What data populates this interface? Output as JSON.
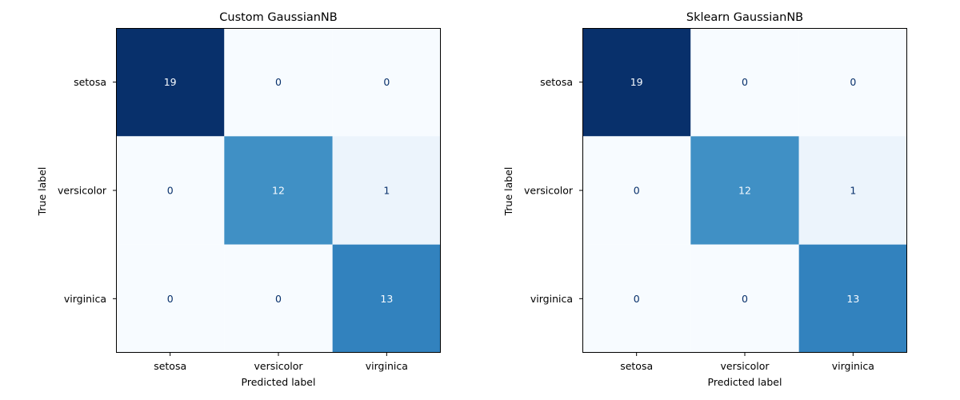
{
  "chart_data": [
    {
      "type": "heatmap",
      "title": "Custom GaussianNB",
      "xlabel": "Predicted label",
      "ylabel": "True label",
      "x_categories": [
        "setosa",
        "versicolor",
        "virginica"
      ],
      "y_categories": [
        "setosa",
        "versicolor",
        "virginica"
      ],
      "values": [
        [
          19,
          0,
          0
        ],
        [
          0,
          12,
          1
        ],
        [
          0,
          0,
          13
        ]
      ],
      "colormap": "Blues",
      "vmin": 0,
      "vmax": 19,
      "colorbar": false
    },
    {
      "type": "heatmap",
      "title": "Sklearn GaussianNB",
      "xlabel": "Predicted label",
      "ylabel": "True label",
      "x_categories": [
        "setosa",
        "versicolor",
        "virginica"
      ],
      "y_categories": [
        "setosa",
        "versicolor",
        "virginica"
      ],
      "values": [
        [
          19,
          0,
          0
        ],
        [
          0,
          12,
          1
        ],
        [
          0,
          0,
          13
        ]
      ],
      "colormap": "Blues",
      "vmin": 0,
      "vmax": 19,
      "colorbar": false
    }
  ],
  "colors": {
    "low": "#f7fbff",
    "mid_light": "#eaf2fb",
    "mid": "#4292c6",
    "mid_dark": "#3181bd",
    "high": "#08306b",
    "text_dark": "#08306b",
    "text_light": "#f7fbff",
    "axis": "#000000"
  }
}
